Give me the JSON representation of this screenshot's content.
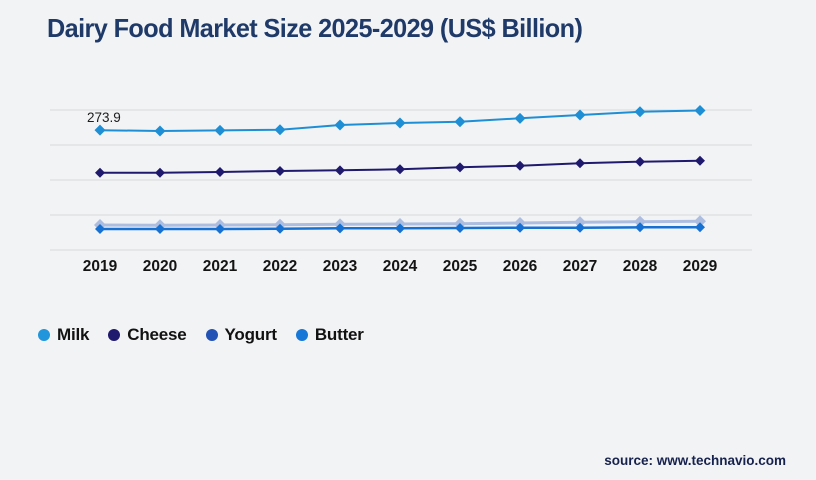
{
  "page": {
    "background": "#f2f3f5"
  },
  "footer": {
    "source": "source: www.technavio.com"
  },
  "chart_data": {
    "type": "line",
    "title": "Dairy Food Market Size 2025-2029 (US$ Billion)",
    "title_color": "#1f3a68",
    "categories": [
      "2019",
      "2020",
      "2021",
      "2022",
      "2023",
      "2024",
      "2025",
      "2026",
      "2027",
      "2028",
      "2029"
    ],
    "series": [
      {
        "name": "Milk",
        "color": "#1e8fd5",
        "legend_color": "#2196dc",
        "line_width": 2,
        "marker_size": 5.5,
        "line_opacity": 1,
        "values": [
          273.9,
          271.9,
          273.4,
          274.8,
          285.7,
          290.3,
          293.2,
          301.0,
          308.6,
          316.0,
          318.9
        ]
      },
      {
        "name": "Cheese",
        "color": "#201a6e",
        "legend_color": "#201a6e",
        "line_width": 2,
        "marker_size": 5,
        "line_opacity": 1,
        "values": [
          176.7,
          176.7,
          178.3,
          180.6,
          182.1,
          184.5,
          189.0,
          192.7,
          198.2,
          201.8,
          204.1
        ]
      },
      {
        "name": "Yogurt",
        "color": "#2253b5",
        "legend_color": "#2253b5",
        "line_width": 3,
        "marker_size": 6,
        "line_opacity": 0.33,
        "values": [
          57.1,
          56.5,
          57.1,
          57.8,
          58.7,
          59.4,
          60.1,
          61.7,
          63.3,
          64.7,
          65.6
        ]
      },
      {
        "name": "Butter",
        "color": "#1671d2",
        "legend_color": "#1778d8",
        "line_width": 2.5,
        "marker_size": 5,
        "line_opacity": 1,
        "values": [
          48.0,
          48.0,
          48.0,
          48.7,
          49.5,
          49.5,
          50.3,
          51.0,
          51.0,
          51.9,
          51.9
        ]
      }
    ],
    "ylim": [
      0,
      320
    ],
    "gridline_step": 80,
    "grid": true,
    "y_axis_labels_visible": false,
    "gridline_color": "#d8dadc",
    "axis_label_color": "#141414",
    "marker": "diamond",
    "legend_position": "bottom-left",
    "annotations": [
      {
        "series": "Milk",
        "category": "2019",
        "text": "273.9"
      }
    ]
  }
}
